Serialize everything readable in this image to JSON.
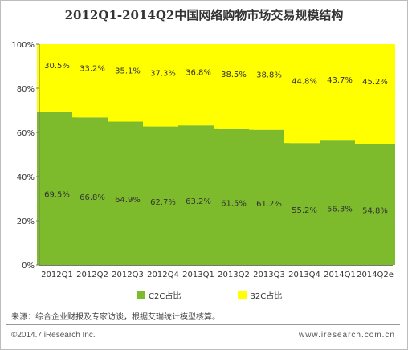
{
  "chart_data": {
    "type": "bar",
    "stacked": true,
    "title": "2012Q1-2014Q2中国网络购物市场交易规模结构",
    "categories": [
      "2012Q1",
      "2012Q2",
      "2012Q3",
      "2012Q4",
      "2013Q1",
      "2013Q2",
      "2013Q3",
      "2013Q4",
      "2014Q1",
      "2014Q2e"
    ],
    "series": [
      {
        "name": "C2C占比",
        "values": [
          69.5,
          66.8,
          64.9,
          62.7,
          63.2,
          61.5,
          61.2,
          55.2,
          56.3,
          54.8
        ],
        "labels": [
          "69.5%",
          "66.8%",
          "64.9%",
          "62.7%",
          "63.2%",
          "61.5%",
          "61.2%",
          "55.2%",
          "56.3%",
          "54.8%"
        ],
        "color": "#7dbb2c"
      },
      {
        "name": "B2C占比",
        "values": [
          30.5,
          33.2,
          35.1,
          37.3,
          36.8,
          38.5,
          38.8,
          44.8,
          43.7,
          45.2
        ],
        "labels": [
          "30.5%",
          "33.2%",
          "35.1%",
          "37.3%",
          "36.8%",
          "38.5%",
          "38.8%",
          "44.8%",
          "43.7%",
          "45.2%"
        ],
        "color": "#ffff00"
      }
    ],
    "y_ticks": [
      "0%",
      "20%",
      "40%",
      "60%",
      "80%",
      "100%"
    ],
    "ylim": [
      0,
      100
    ],
    "grid": false,
    "legend_position": "bottom"
  },
  "footer": {
    "source": "来源：综合企业财报及专家访谈，根据艾瑞统计模型核算。",
    "copyright": "©2014.7 iResearch Inc.",
    "website": "www.iresearch.com.cn"
  }
}
